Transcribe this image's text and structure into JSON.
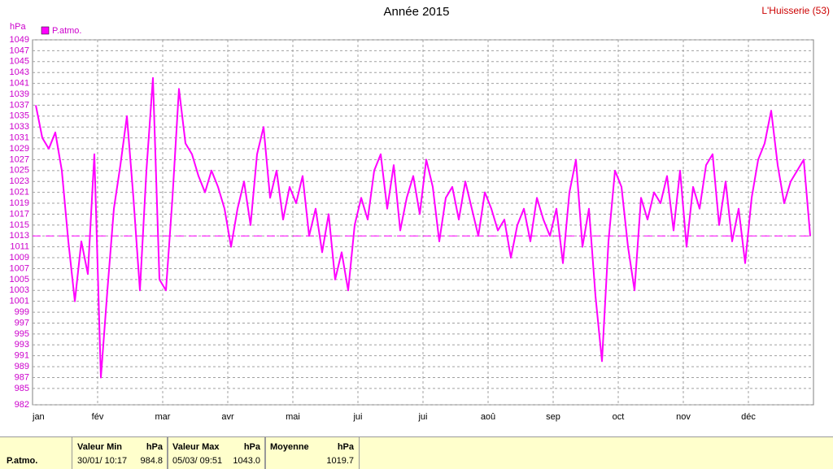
{
  "chart_data": {
    "type": "line",
    "title": "Année 2015",
    "station": "L'Huisserie (53)",
    "y_label": "hPa",
    "categories": [
      "jan",
      null,
      null,
      null,
      null,
      null,
      null,
      null,
      null,
      null,
      "fév",
      null,
      null,
      null,
      null,
      null,
      null,
      null,
      null,
      null,
      "mar",
      null,
      null,
      null,
      null,
      null,
      null,
      null,
      null,
      null,
      "avr",
      null,
      null,
      null,
      null,
      null,
      null,
      null,
      null,
      null,
      "mai",
      null,
      null,
      null,
      null,
      null,
      null,
      null,
      null,
      null,
      "jui",
      null,
      null,
      null,
      null,
      null,
      null,
      null,
      null,
      null,
      "jui",
      null,
      null,
      null,
      null,
      null,
      null,
      null,
      null,
      null,
      "aoû",
      null,
      null,
      null,
      null,
      null,
      null,
      null,
      null,
      null,
      "sep",
      null,
      null,
      null,
      null,
      null,
      null,
      null,
      null,
      null,
      "oct",
      null,
      null,
      null,
      null,
      null,
      null,
      null,
      null,
      null,
      "nov",
      null,
      null,
      null,
      null,
      null,
      null,
      null,
      null,
      null,
      "déc",
      null,
      null,
      null,
      null,
      null,
      null,
      null,
      null,
      null
    ],
    "series": [
      {
        "name": "P.atmo.",
        "color": "#ff00ff",
        "values": [
          1037,
          1031,
          1029,
          1032,
          1025,
          1012,
          1001,
          1012,
          1006,
          1028,
          987,
          1003,
          1018,
          1026,
          1035,
          1020,
          1003,
          1025,
          1042,
          1005,
          1003,
          1020,
          1040,
          1030,
          1028,
          1024,
          1021,
          1025,
          1022,
          1018,
          1011,
          1018,
          1023,
          1015,
          1028,
          1033,
          1020,
          1025,
          1016,
          1022,
          1019,
          1024,
          1013,
          1018,
          1010,
          1017,
          1005,
          1010,
          1003,
          1015,
          1020,
          1016,
          1025,
          1028,
          1018,
          1026,
          1014,
          1020,
          1024,
          1017,
          1027,
          1022,
          1012,
          1020,
          1022,
          1016,
          1023,
          1018,
          1013,
          1021,
          1018,
          1014,
          1016,
          1009,
          1015,
          1018,
          1012,
          1020,
          1016,
          1013,
          1018,
          1008,
          1021,
          1027,
          1011,
          1018,
          1002,
          990,
          1012,
          1025,
          1022,
          1011,
          1003,
          1020,
          1016,
          1021,
          1019,
          1024,
          1014,
          1025,
          1011,
          1022,
          1018,
          1026,
          1028,
          1015,
          1023,
          1012,
          1018,
          1008,
          1020,
          1027,
          1030,
          1036,
          1026,
          1019,
          1023,
          1025,
          1027,
          1013
        ]
      }
    ],
    "reference_line": 1013,
    "ylim": [
      982,
      1049
    ],
    "yticks": [
      982,
      985,
      987,
      989,
      991,
      993,
      995,
      997,
      999,
      1001,
      1003,
      1005,
      1007,
      1009,
      1011,
      1013,
      1015,
      1017,
      1019,
      1021,
      1023,
      1025,
      1027,
      1029,
      1031,
      1033,
      1035,
      1037,
      1039,
      1041,
      1043,
      1045,
      1047,
      1049
    ],
    "grid": true
  },
  "stats_table": {
    "row_label": "P.atmo.",
    "columns": [
      {
        "title": "Valeur Min",
        "unit": "hPa",
        "date": "30/01/ 10:17",
        "value": "984.8"
      },
      {
        "title": "Valeur Max",
        "unit": "hPa",
        "date": "05/03/ 09:51",
        "value": "1043.0"
      },
      {
        "title": "Moyenne",
        "unit": "hPa",
        "date": "",
        "value": "1019.7"
      }
    ]
  }
}
